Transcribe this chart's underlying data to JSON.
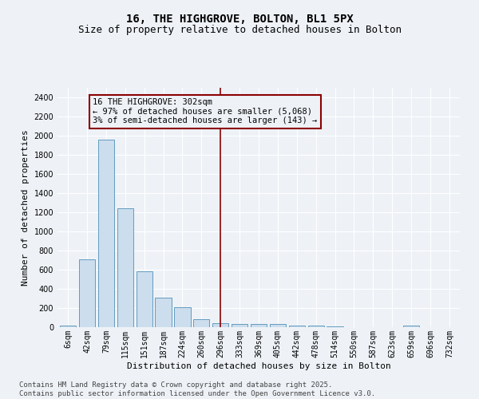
{
  "title": "16, THE HIGHGROVE, BOLTON, BL1 5PX",
  "subtitle": "Size of property relative to detached houses in Bolton",
  "xlabel": "Distribution of detached houses by size in Bolton",
  "ylabel": "Number of detached properties",
  "categories": [
    "6sqm",
    "42sqm",
    "79sqm",
    "115sqm",
    "151sqm",
    "187sqm",
    "224sqm",
    "260sqm",
    "296sqm",
    "333sqm",
    "369sqm",
    "405sqm",
    "442sqm",
    "478sqm",
    "514sqm",
    "550sqm",
    "587sqm",
    "623sqm",
    "659sqm",
    "696sqm",
    "732sqm"
  ],
  "values": [
    15,
    710,
    1960,
    1240,
    580,
    310,
    205,
    80,
    42,
    35,
    30,
    30,
    20,
    14,
    5,
    2,
    2,
    0,
    15,
    0,
    0
  ],
  "bar_color": "#ccdded",
  "bar_edge_color": "#5090b8",
  "vline_x": 8,
  "vline_color": "#8b0000",
  "annotation_box_text": "16 THE HIGHGROVE: 302sqm\n← 97% of detached houses are smaller (5,068)\n3% of semi-detached houses are larger (143) →",
  "ylim": [
    0,
    2500
  ],
  "yticks": [
    0,
    200,
    400,
    600,
    800,
    1000,
    1200,
    1400,
    1600,
    1800,
    2000,
    2200,
    2400
  ],
  "footnote": "Contains HM Land Registry data © Crown copyright and database right 2025.\nContains public sector information licensed under the Open Government Licence v3.0.",
  "bg_color": "#eef2f7",
  "grid_color": "#ffffff",
  "title_fontsize": 10,
  "subtitle_fontsize": 9,
  "label_fontsize": 8,
  "tick_fontsize": 7,
  "ann_fontsize": 7.5,
  "footnote_fontsize": 6.5
}
